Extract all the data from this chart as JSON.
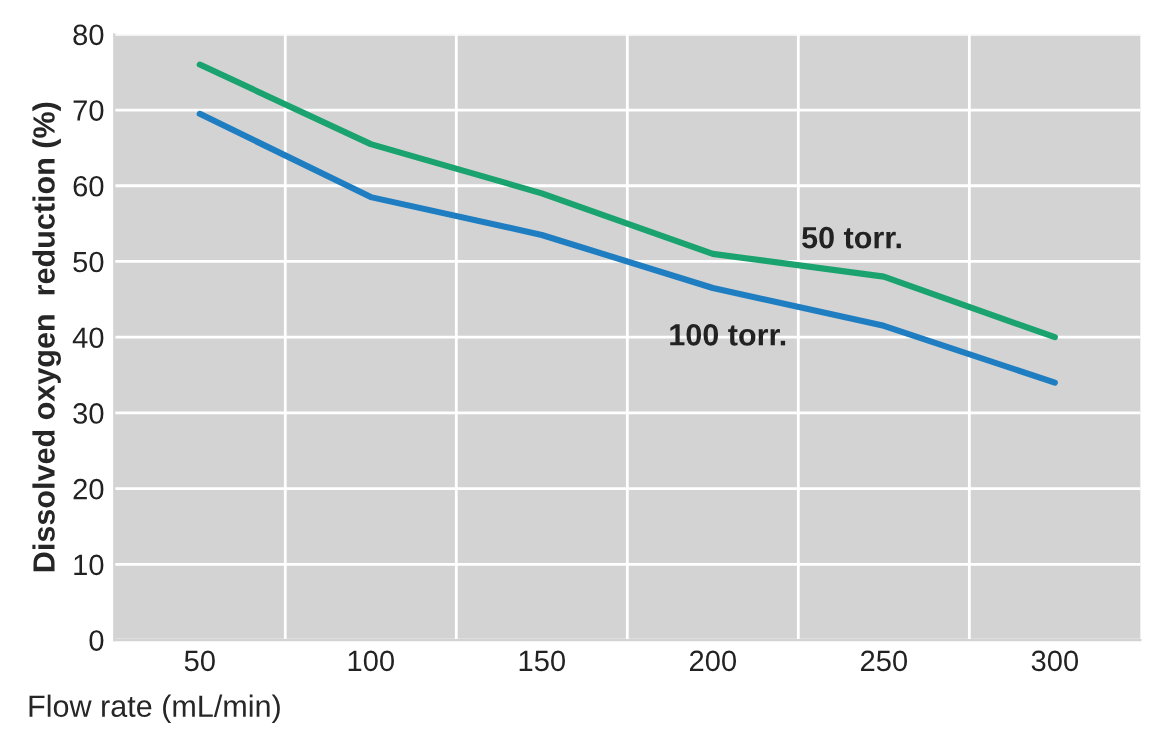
{
  "chart_data": {
    "type": "line",
    "xlabel": "Flow rate (mL/min)",
    "ylabel": "Dissolved oxygen  reduction (%)",
    "x": [
      50,
      100,
      150,
      200,
      250,
      300
    ],
    "series": [
      {
        "name": "50 torr.",
        "color": "#1aa36f",
        "values": [
          76,
          65.5,
          59,
          51,
          48,
          40
        ]
      },
      {
        "name": "100 torr.",
        "color": "#1f7dc1",
        "values": [
          69.5,
          58.5,
          53.5,
          46.5,
          41.5,
          34
        ]
      }
    ],
    "xlim": [
      25,
      325
    ],
    "xticks": [
      50,
      {
        "value": 75,
        "label": null
      },
      100,
      {
        "value": 125,
        "label": null
      },
      150,
      {
        "value": 175,
        "label": null
      },
      200,
      {
        "value": 225,
        "label": null
      },
      250,
      {
        "value": 275,
        "label": null
      },
      300
    ],
    "ylim": [
      0,
      80
    ],
    "yticks": [
      0,
      10,
      20,
      30,
      40,
      50,
      60,
      70,
      80
    ],
    "grid": true,
    "marker": "none",
    "line_style": "solid"
  }
}
